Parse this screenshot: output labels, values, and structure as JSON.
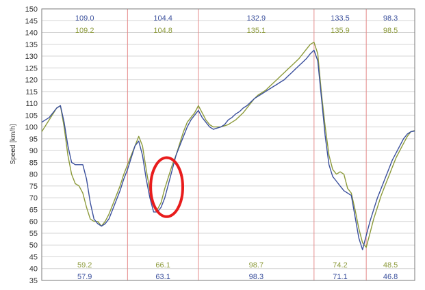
{
  "chart_data": {
    "type": "line",
    "title": "",
    "xlabel": "",
    "ylabel": "Speed [km/h]",
    "ylim": [
      35,
      150
    ],
    "yticks": [
      35,
      40,
      45,
      50,
      55,
      60,
      65,
      70,
      75,
      80,
      85,
      90,
      95,
      100,
      105,
      110,
      115,
      120,
      125,
      130,
      135,
      140,
      145,
      150
    ],
    "ytick_labels": [
      "35",
      "40",
      "45",
      "50",
      "55",
      "60",
      "65",
      "70",
      "75",
      "80",
      "85",
      "90",
      "95",
      "100",
      "105",
      "110",
      "115",
      "120",
      "125",
      "130",
      "135",
      "140",
      "145",
      "150"
    ],
    "xlim": [
      0,
      100
    ],
    "segment_boundaries": [
      23.0,
      42.0,
      73.0,
      87.0
    ],
    "grid": true,
    "colors": {
      "blue": "#3a4f9c",
      "green": "#8c9a3a",
      "divider": "#e58a8a",
      "grid": "#d4d4d4",
      "highlight": "#e81c1c"
    },
    "series": [
      {
        "color": "#3a4f9c",
        "x": [
          0,
          2,
          4,
          5,
          6,
          7,
          8,
          9,
          10,
          11,
          12,
          13,
          14,
          15,
          16,
          17,
          18,
          19,
          20,
          21,
          22,
          23,
          24,
          25,
          26,
          27,
          28,
          29,
          30,
          31,
          32,
          33,
          34,
          35,
          36,
          37,
          38,
          39,
          40,
          41,
          42,
          43,
          44,
          45,
          46,
          47,
          48,
          49,
          50,
          51,
          52,
          53,
          54,
          55,
          56,
          57,
          58,
          59,
          60,
          61,
          62,
          63,
          64,
          65,
          66,
          67,
          68,
          69,
          70,
          71,
          72,
          73,
          74,
          75,
          76,
          77,
          78,
          79,
          80,
          81,
          82,
          83,
          84,
          85,
          86,
          87,
          88,
          89,
          90,
          91,
          92,
          93,
          94,
          95,
          96,
          97,
          98,
          99,
          100
        ],
        "values": [
          102,
          104,
          108,
          109,
          102,
          92,
          85,
          84,
          84,
          84,
          78,
          68,
          61,
          59,
          58,
          59,
          61,
          65,
          69,
          73,
          78,
          82,
          87,
          92,
          94,
          88,
          78,
          70,
          64,
          64,
          66,
          70,
          76,
          82,
          88,
          92,
          96,
          100,
          103,
          105,
          107,
          104,
          102,
          100,
          99,
          99.5,
          100,
          101,
          103,
          104,
          105.5,
          106.5,
          108,
          109,
          110.5,
          112,
          113,
          114,
          115,
          116,
          117,
          118,
          119,
          120,
          121.5,
          123,
          124.5,
          126,
          127.5,
          129,
          131,
          132.5,
          128,
          112,
          96,
          84,
          79,
          77,
          75,
          73,
          72,
          71,
          62,
          53,
          48,
          54,
          60,
          65,
          70,
          74,
          78,
          82,
          86,
          89,
          92,
          95,
          97,
          98,
          98.3
        ]
      },
      {
        "color": "#8c9a3a",
        "x": [
          0,
          2,
          4,
          5,
          6,
          7,
          8,
          9,
          10,
          11,
          12,
          13,
          14,
          15,
          16,
          17,
          18,
          19,
          20,
          21,
          22,
          23,
          24,
          25,
          26,
          27,
          28,
          29,
          30,
          31,
          32,
          33,
          34,
          35,
          36,
          37,
          38,
          39,
          40,
          41,
          42,
          43,
          44,
          45,
          46,
          47,
          48,
          49,
          50,
          51,
          52,
          53,
          54,
          55,
          56,
          57,
          58,
          59,
          60,
          61,
          62,
          63,
          64,
          65,
          66,
          67,
          68,
          69,
          70,
          71,
          72,
          73,
          74,
          75,
          76,
          77,
          78,
          79,
          80,
          81,
          82,
          83,
          84,
          85,
          86,
          87,
          88,
          89,
          90,
          91,
          92,
          93,
          94,
          95,
          96,
          97,
          98,
          99,
          100
        ],
        "values": [
          98,
          103,
          108,
          109,
          100,
          88,
          80,
          76,
          75,
          72,
          66,
          61,
          60,
          60,
          58,
          60,
          63,
          67,
          71,
          75,
          80,
          84,
          88,
          92,
          96,
          92,
          82,
          73,
          67,
          65,
          68,
          74,
          79,
          84,
          88,
          93,
          98,
          102,
          104,
          106,
          109,
          106,
          103,
          101,
          100,
          100,
          100,
          100.5,
          101,
          102,
          103,
          104.5,
          106,
          108,
          110,
          112,
          113.5,
          114.5,
          115.5,
          117,
          118.5,
          120,
          121.5,
          123,
          124.5,
          126,
          127.5,
          129,
          131,
          133,
          135,
          135.9,
          131,
          114,
          100,
          88,
          82,
          80,
          81,
          80,
          74,
          72,
          65,
          57,
          51,
          49,
          55,
          61,
          66,
          71,
          75,
          79,
          83,
          87,
          90,
          93,
          96,
          98,
          98.5
        ]
      }
    ],
    "segment_labels_top": {
      "blue": [
        "109.0",
        "104.4",
        "132.9",
        "133.5",
        "98.3"
      ],
      "green": [
        "109.2",
        "104.8",
        "135.1",
        "135.9",
        "98.5"
      ]
    },
    "segment_labels_bottom": {
      "green": [
        "59.2",
        "66.1",
        "98.7",
        "74.2",
        "48.5"
      ],
      "blue": [
        "57.9",
        "63.1",
        "98.3",
        "71.1",
        "46.8"
      ]
    },
    "annotation": {
      "shape": "ellipse",
      "center_x": 33.5,
      "center_y": 74.5,
      "rx": 4.3,
      "ry": 12.5
    }
  }
}
